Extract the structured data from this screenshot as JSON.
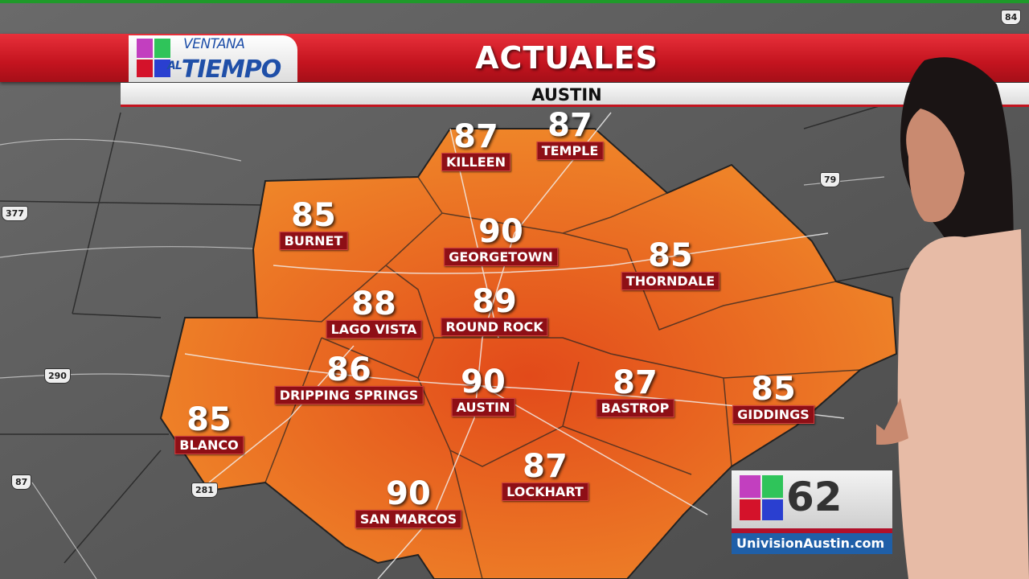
{
  "header": {
    "brand_line1": "VENTANA",
    "brand_line2_prefix": "AL",
    "brand_line2": "TIEMPO",
    "title": "ACTUALES",
    "subtitle": "AUSTIN"
  },
  "colors": {
    "banner": "#c4141f",
    "region": "#e8621e",
    "label_bg": "#8e0f16",
    "map_bg": "#5a5a5a"
  },
  "cities": [
    {
      "name": "KILLEEN",
      "temp": "87"
    },
    {
      "name": "TEMPLE",
      "temp": "87"
    },
    {
      "name": "BURNET",
      "temp": "85"
    },
    {
      "name": "GEORGETOWN",
      "temp": "90"
    },
    {
      "name": "THORNDALE",
      "temp": "85"
    },
    {
      "name": "LAGO VISTA",
      "temp": "88"
    },
    {
      "name": "ROUND ROCK",
      "temp": "89"
    },
    {
      "name": "DRIPPING SPRINGS",
      "temp": "86"
    },
    {
      "name": "AUSTIN",
      "temp": "90"
    },
    {
      "name": "BASTROP",
      "temp": "87"
    },
    {
      "name": "GIDDINGS",
      "temp": "85"
    },
    {
      "name": "BLANCO",
      "temp": "85"
    },
    {
      "name": "LOCKHART",
      "temp": "87"
    },
    {
      "name": "SAN MARCOS",
      "temp": "90"
    }
  ],
  "highways": [
    "377",
    "290",
    "87",
    "281",
    "79",
    "84"
  ],
  "station": {
    "number": "62",
    "website": "UnivisionAustin.com"
  }
}
